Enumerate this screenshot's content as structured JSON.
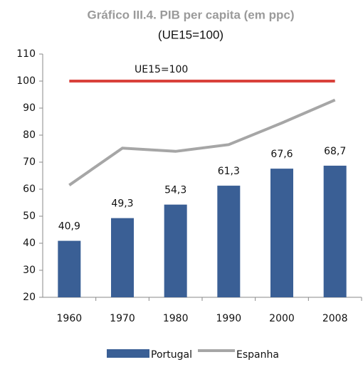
{
  "chart_data": {
    "type": "bar",
    "title": "Gráfico III.4. PIB per capita (em ppc)",
    "subtitle": "(UE15=100)",
    "categories": [
      "1960",
      "1970",
      "1980",
      "1990",
      "2000",
      "2008"
    ],
    "series": [
      {
        "name": "Portugal",
        "type": "bar",
        "color": "#3a5f95",
        "values": [
          40.9,
          49.3,
          54.3,
          61.3,
          67.6,
          68.7
        ],
        "value_labels": [
          "40,9",
          "49,3",
          "54,3",
          "61,3",
          "67,6",
          "68,7"
        ]
      },
      {
        "name": "Espanha",
        "type": "line",
        "color": "#a6a6a6",
        "values": [
          61.5,
          75.2,
          74,
          76.5,
          84.5,
          93
        ]
      }
    ],
    "reference_line": {
      "value": 100,
      "label": "UE15=100",
      "color": "#d9413b"
    },
    "ylim": [
      20,
      110
    ],
    "yticks": [
      20,
      30,
      40,
      50,
      60,
      70,
      80,
      90,
      100,
      110
    ],
    "legend": "bottom"
  }
}
